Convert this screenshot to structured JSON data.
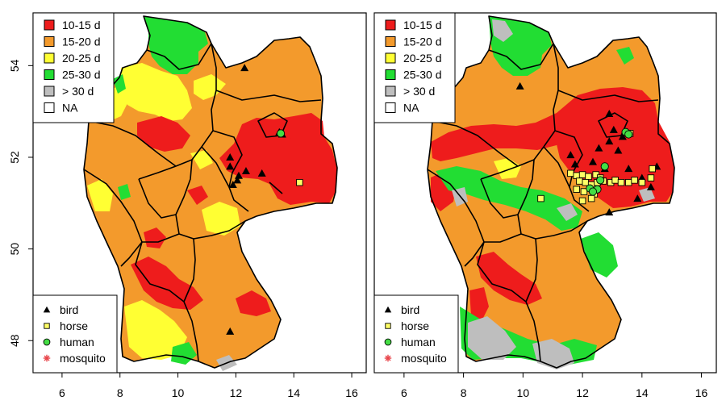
{
  "panels": [
    {
      "id": "left",
      "legend_fill": [
        {
          "label": "10-15 d",
          "color": "#ee1c1c"
        },
        {
          "label": "15-20 d",
          "color": "#f39a2c"
        },
        {
          "label": "20-25 d",
          "color": "#ffff33"
        },
        {
          "label": "25-30 d",
          "color": "#22dd33"
        },
        {
          "label": "> 30 d",
          "color": "#bebebe"
        },
        {
          "label": "NA",
          "color": "#ffffff"
        }
      ],
      "legend_points": [
        {
          "label": "bird",
          "symbol": "triangle"
        },
        {
          "label": "horse",
          "symbol": "square"
        },
        {
          "label": "human",
          "symbol": "circle"
        },
        {
          "label": "mosquito",
          "symbol": "asterisk"
        }
      ],
      "observations": {
        "bird": [
          [
            12.3,
            53.95
          ],
          [
            13.5,
            52.55
          ],
          [
            13.6,
            52.5
          ],
          [
            11.8,
            52.0
          ],
          [
            11.8,
            51.8
          ],
          [
            12.1,
            51.6
          ],
          [
            12.35,
            51.7
          ],
          [
            11.9,
            51.4
          ],
          [
            12.05,
            51.5
          ],
          [
            12.9,
            51.65
          ],
          [
            11.8,
            48.2
          ]
        ],
        "horse": [
          [
            14.2,
            51.45
          ]
        ],
        "human": [
          [
            13.55,
            52.52
          ]
        ],
        "mosquito": []
      }
    },
    {
      "id": "right",
      "legend_fill": [
        {
          "label": "10-15 d",
          "color": "#ee1c1c"
        },
        {
          "label": "15-20 d",
          "color": "#f39a2c"
        },
        {
          "label": "20-25 d",
          "color": "#ffff33"
        },
        {
          "label": "25-30 d",
          "color": "#22dd33"
        },
        {
          "label": "> 30 d",
          "color": "#bebebe"
        },
        {
          "label": "NA",
          "color": "#ffffff"
        }
      ],
      "legend_points": [
        {
          "label": "bird",
          "symbol": "triangle"
        },
        {
          "label": "horse",
          "symbol": "square"
        },
        {
          "label": "human",
          "symbol": "circle"
        },
        {
          "label": "mosquito",
          "symbol": "asterisk"
        }
      ],
      "observations": {
        "bird": [
          [
            9.9,
            53.55
          ],
          [
            12.9,
            52.95
          ],
          [
            13.05,
            52.6
          ],
          [
            13.35,
            52.45
          ],
          [
            13.5,
            52.55
          ],
          [
            12.9,
            52.35
          ],
          [
            12.55,
            52.2
          ],
          [
            13.2,
            52.15
          ],
          [
            11.6,
            52.05
          ],
          [
            11.75,
            51.85
          ],
          [
            12.35,
            51.9
          ],
          [
            12.75,
            51.75
          ],
          [
            13.55,
            51.75
          ],
          [
            14.0,
            51.55
          ],
          [
            14.5,
            51.8
          ],
          [
            14.3,
            51.35
          ],
          [
            13.85,
            51.1
          ],
          [
            12.9,
            50.8
          ]
        ],
        "horse": [
          [
            11.6,
            51.65
          ],
          [
            11.8,
            51.6
          ],
          [
            12.0,
            51.62
          ],
          [
            12.2,
            51.58
          ],
          [
            12.45,
            51.62
          ],
          [
            12.6,
            51.55
          ],
          [
            11.9,
            51.48
          ],
          [
            12.1,
            51.45
          ],
          [
            12.3,
            51.4
          ],
          [
            12.5,
            51.45
          ],
          [
            12.7,
            51.48
          ],
          [
            12.95,
            51.45
          ],
          [
            13.1,
            51.5
          ],
          [
            13.3,
            51.45
          ],
          [
            13.55,
            51.45
          ],
          [
            13.75,
            51.5
          ],
          [
            14.0,
            51.45
          ],
          [
            14.3,
            51.55
          ],
          [
            11.8,
            51.3
          ],
          [
            12.05,
            51.25
          ],
          [
            12.4,
            51.2
          ],
          [
            10.6,
            51.1
          ],
          [
            12.0,
            51.05
          ],
          [
            12.3,
            51.1
          ],
          [
            14.35,
            51.75
          ],
          [
            13.6,
            52.52
          ]
        ],
        "human": [
          [
            13.45,
            52.55
          ],
          [
            13.55,
            52.5
          ],
          [
            12.75,
            51.8
          ],
          [
            12.6,
            51.5
          ],
          [
            12.5,
            51.3
          ],
          [
            12.25,
            51.32
          ],
          [
            12.35,
            51.25
          ]
        ],
        "mosquito": []
      }
    }
  ],
  "x_axis": {
    "ticks": [
      "6",
      "8",
      "10",
      "12",
      "14",
      "16"
    ],
    "range": [
      5.0,
      16.5
    ]
  },
  "y_axis": {
    "ticks": [
      "48",
      "50",
      "52",
      "54"
    ],
    "range": [
      47.3,
      55.15
    ]
  },
  "colors": {
    "frame": "#000000",
    "state_border": "#000000",
    "bird": "#000000",
    "horse_fill": "#ffff66",
    "human_fill": "#44dd44",
    "mosquito": "#e8444a"
  }
}
